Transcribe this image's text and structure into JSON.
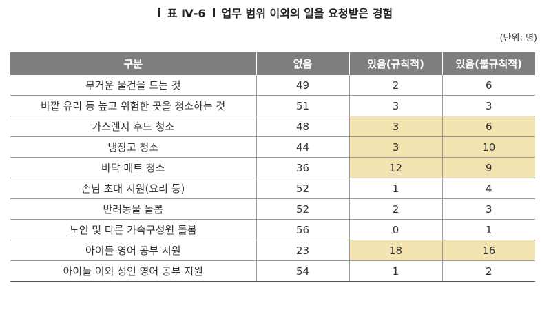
{
  "title": {
    "prefix": "표 Ⅳ-6",
    "text": "업무 범위 이외의 일을 요청받은 경험"
  },
  "unit": "(단위: 명)",
  "table": {
    "headers": [
      "구분",
      "없음",
      "있음(규칙적)",
      "있음(불규칙적)"
    ],
    "rows": [
      {
        "label": "무거운 물건을 드는 것",
        "none": "49",
        "regular": "2",
        "irregular": "6",
        "highlight": false
      },
      {
        "label": "바깥 유리 등 높고 위험한 곳을 청소하는 것",
        "none": "51",
        "regular": "3",
        "irregular": "3",
        "highlight": false
      },
      {
        "label": "가스렌지 후드 청소",
        "none": "48",
        "regular": "3",
        "irregular": "6",
        "highlight": true
      },
      {
        "label": "냉장고 청소",
        "none": "44",
        "regular": "3",
        "irregular": "10",
        "highlight": true
      },
      {
        "label": "바닥 매트 청소",
        "none": "36",
        "regular": "12",
        "irregular": "9",
        "highlight": true
      },
      {
        "label": "손님 초대 지원(요리 등)",
        "none": "52",
        "regular": "1",
        "irregular": "4",
        "highlight": false
      },
      {
        "label": "반려동물 돌봄",
        "none": "52",
        "regular": "2",
        "irregular": "3",
        "highlight": false
      },
      {
        "label": "노인 및 다른 가속구성원 돌봄",
        "none": "56",
        "regular": "0",
        "irregular": "1",
        "highlight": false
      },
      {
        "label": "아이들 영어 공부 지원",
        "none": "23",
        "regular": "18",
        "irregular": "16",
        "highlight": true
      },
      {
        "label": "아이들 이외 성인 영어 공부 지원",
        "none": "54",
        "regular": "1",
        "irregular": "2",
        "highlight": false
      }
    ],
    "highlight_color": "#f3e3b0",
    "header_color": "#7e7e7e"
  }
}
